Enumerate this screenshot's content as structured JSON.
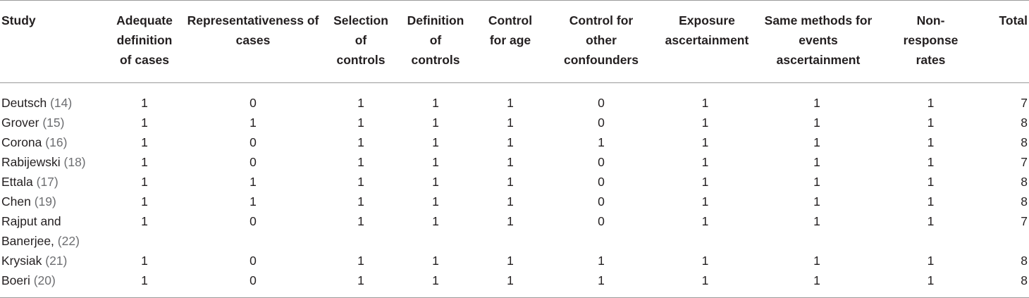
{
  "table": {
    "headers": [
      "Study",
      "Adequate definition of cases",
      "Representativeness of cases",
      "Selection of controls",
      "Definition of controls",
      "Control for age",
      "Control for other confounders",
      "Exposure ascertainment",
      "Same methods for events ascertainment",
      "Non-response rates",
      "Total"
    ],
    "rows": [
      {
        "study": "Deutsch",
        "ref": "(14)",
        "cells": [
          "1",
          "0",
          "1",
          "1",
          "1",
          "0",
          "1",
          "1",
          "1",
          "7"
        ]
      },
      {
        "study": "Grover",
        "ref": "(15)",
        "cells": [
          "1",
          "1",
          "1",
          "1",
          "1",
          "0",
          "1",
          "1",
          "1",
          "8"
        ]
      },
      {
        "study": "Corona",
        "ref": "(16)",
        "cells": [
          "1",
          "0",
          "1",
          "1",
          "1",
          "1",
          "1",
          "1",
          "1",
          "8"
        ]
      },
      {
        "study": "Rabijewski",
        "ref": "(18)",
        "cells": [
          "1",
          "0",
          "1",
          "1",
          "1",
          "0",
          "1",
          "1",
          "1",
          "7"
        ]
      },
      {
        "study": "Ettala",
        "ref": "(17)",
        "cells": [
          "1",
          "1",
          "1",
          "1",
          "1",
          "0",
          "1",
          "1",
          "1",
          "8"
        ]
      },
      {
        "study": "Chen",
        "ref": "(19)",
        "cells": [
          "1",
          "1",
          "1",
          "1",
          "1",
          "0",
          "1",
          "1",
          "1",
          "8"
        ]
      },
      {
        "study": "Rajput and Banerjee,",
        "ref": "(22)",
        "cells": [
          "1",
          "0",
          "1",
          "1",
          "1",
          "0",
          "1",
          "1",
          "1",
          "7"
        ]
      },
      {
        "study": "Krysiak",
        "ref": "(21)",
        "cells": [
          "1",
          "0",
          "1",
          "1",
          "1",
          "1",
          "1",
          "1",
          "1",
          "8"
        ]
      },
      {
        "study": "Boeri",
        "ref": "(20)",
        "cells": [
          "1",
          "0",
          "1",
          "1",
          "1",
          "1",
          "1",
          "1",
          "1",
          "8"
        ]
      }
    ]
  }
}
